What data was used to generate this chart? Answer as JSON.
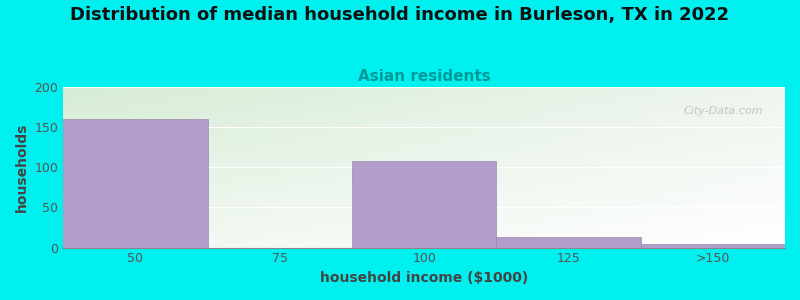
{
  "title": "Distribution of median household income in Burleson, TX in 2022",
  "subtitle": "Asian residents",
  "xlabel": "household income ($1000)",
  "ylabel": "households",
  "categories": [
    "50",
    "75",
    "100",
    "125",
    ">150"
  ],
  "values": [
    160,
    0,
    108,
    13,
    5
  ],
  "bar_color": "#b39dca",
  "bar_edge_color": "#9b8ab0",
  "bg_color": "#00efef",
  "plot_bg_top_left": "#d6ecd6",
  "plot_bg_bottom_right": "#f8f8ff",
  "ylim": [
    0,
    200
  ],
  "yticks": [
    0,
    50,
    100,
    150,
    200
  ],
  "watermark": "City-Data.com",
  "title_fontsize": 13,
  "subtitle_fontsize": 11,
  "label_fontsize": 10,
  "tick_fontsize": 9,
  "bar_width": 1.0
}
